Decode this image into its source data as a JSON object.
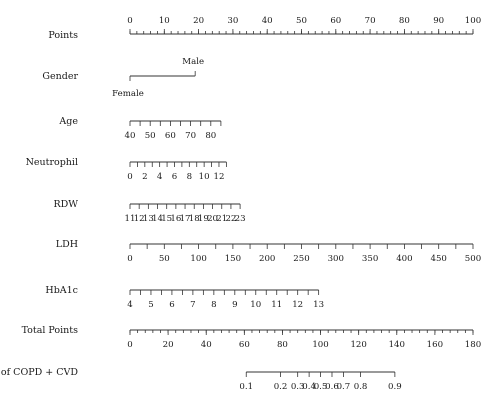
{
  "chart_data": {
    "type": "nomogram",
    "rows": [
      {
        "label": "Points",
        "min": 0,
        "max": 100,
        "ticks": [
          0,
          10,
          20,
          30,
          40,
          50,
          60,
          70,
          80,
          90,
          100
        ],
        "tick_labels": [
          "0",
          "10",
          "20",
          "30",
          "40",
          "50",
          "60",
          "70",
          "80",
          "90",
          "100"
        ],
        "minor_step": 2,
        "point_range": [
          0,
          100
        ],
        "label_position": "above"
      },
      {
        "label": "Gender",
        "categories": [
          "Female",
          "Male"
        ],
        "points": [
          0,
          19
        ],
        "label_position": "split"
      },
      {
        "label": "Age",
        "min": 40,
        "max": 85,
        "ticks": [
          40,
          45,
          50,
          55,
          60,
          65,
          70,
          75,
          80,
          85
        ],
        "tick_labels": [
          "40",
          "50",
          "60",
          "70",
          "80"
        ],
        "tick_label_values": [
          40,
          50,
          60,
          70,
          80
        ],
        "point_range": [
          0,
          26.5
        ],
        "label_position": "below"
      },
      {
        "label": "Neutrophil",
        "min": 0,
        "max": 13,
        "ticks": [
          0,
          1,
          2,
          3,
          4,
          5,
          6,
          7,
          8,
          9,
          10,
          11,
          12,
          13
        ],
        "tick_labels": [
          "0",
          "2",
          "4",
          "6",
          "8",
          "10",
          "12"
        ],
        "tick_label_values": [
          0,
          2,
          4,
          6,
          8,
          10,
          12
        ],
        "point_range": [
          0,
          28.1
        ],
        "label_position": "below"
      },
      {
        "label": "RDW",
        "min": 11,
        "max": 23,
        "ticks": [
          11,
          12,
          13,
          14,
          15,
          16,
          17,
          18,
          19,
          20,
          21,
          22,
          23
        ],
        "tick_labels": [
          "11",
          "12",
          "13",
          "14",
          "15",
          "16",
          "17",
          "18",
          "19",
          "20",
          "21",
          "22",
          "23"
        ],
        "tick_label_values": [
          11,
          12,
          13,
          14,
          15,
          16,
          17,
          18,
          19,
          20,
          21,
          22,
          23
        ],
        "point_range": [
          0,
          32.1
        ],
        "label_position": "below"
      },
      {
        "label": "LDH",
        "min": 0,
        "max": 500,
        "ticks": [
          0,
          25,
          50,
          75,
          100,
          125,
          150,
          175,
          200,
          225,
          250,
          275,
          300,
          325,
          350,
          375,
          400,
          425,
          450,
          475,
          500
        ],
        "tick_labels": [
          "0",
          "50",
          "100",
          "150",
          "200",
          "250",
          "300",
          "350",
          "400",
          "450",
          "500"
        ],
        "tick_label_values": [
          0,
          50,
          100,
          150,
          200,
          250,
          300,
          350,
          400,
          450,
          500
        ],
        "point_range": [
          0,
          100
        ],
        "label_position": "below"
      },
      {
        "label": "HbA1c",
        "min": 4,
        "max": 13,
        "ticks": [
          4,
          4.5,
          5,
          5.5,
          6,
          6.5,
          7,
          7.5,
          8,
          8.5,
          9,
          9.5,
          10,
          10.5,
          11,
          11.5,
          12,
          12.5,
          13
        ],
        "tick_labels": [
          "4",
          "5",
          "6",
          "7",
          "8",
          "9",
          "10",
          "11",
          "12",
          "13"
        ],
        "tick_label_values": [
          4,
          5,
          6,
          7,
          8,
          9,
          10,
          11,
          12,
          13
        ],
        "point_range": [
          0,
          55
        ],
        "label_position": "below"
      },
      {
        "label": "Total Points",
        "min": 0,
        "max": 180,
        "ticks": [
          0,
          20,
          40,
          60,
          80,
          100,
          120,
          140,
          160,
          180
        ],
        "tick_labels": [
          "0",
          "20",
          "40",
          "60",
          "80",
          "100",
          "120",
          "140",
          "160",
          "180"
        ],
        "minor_step": 4,
        "point_range": [
          0,
          100
        ],
        "label_position": "below"
      },
      {
        "label": "Risk of COPD + CVD",
        "min": 0.1,
        "max": 0.9,
        "ticks": [
          0.1,
          0.2,
          0.3,
          0.4,
          0.5,
          0.6,
          0.7,
          0.8,
          0.9
        ],
        "tick_labels": [
          "0.1",
          "0.2",
          "0.3",
          "0.4",
          "0.5",
          "0.6",
          "0.7",
          "0.8",
          "0.9"
        ],
        "tick_label_values": [
          0.1,
          0.2,
          0.3,
          0.4,
          0.5,
          0.6,
          0.7,
          0.8,
          0.9
        ],
        "total_points_at_ticks": [
          61,
          79,
          88,
          94,
          100,
          106,
          112,
          121,
          139
        ],
        "label_position": "below"
      }
    ]
  }
}
